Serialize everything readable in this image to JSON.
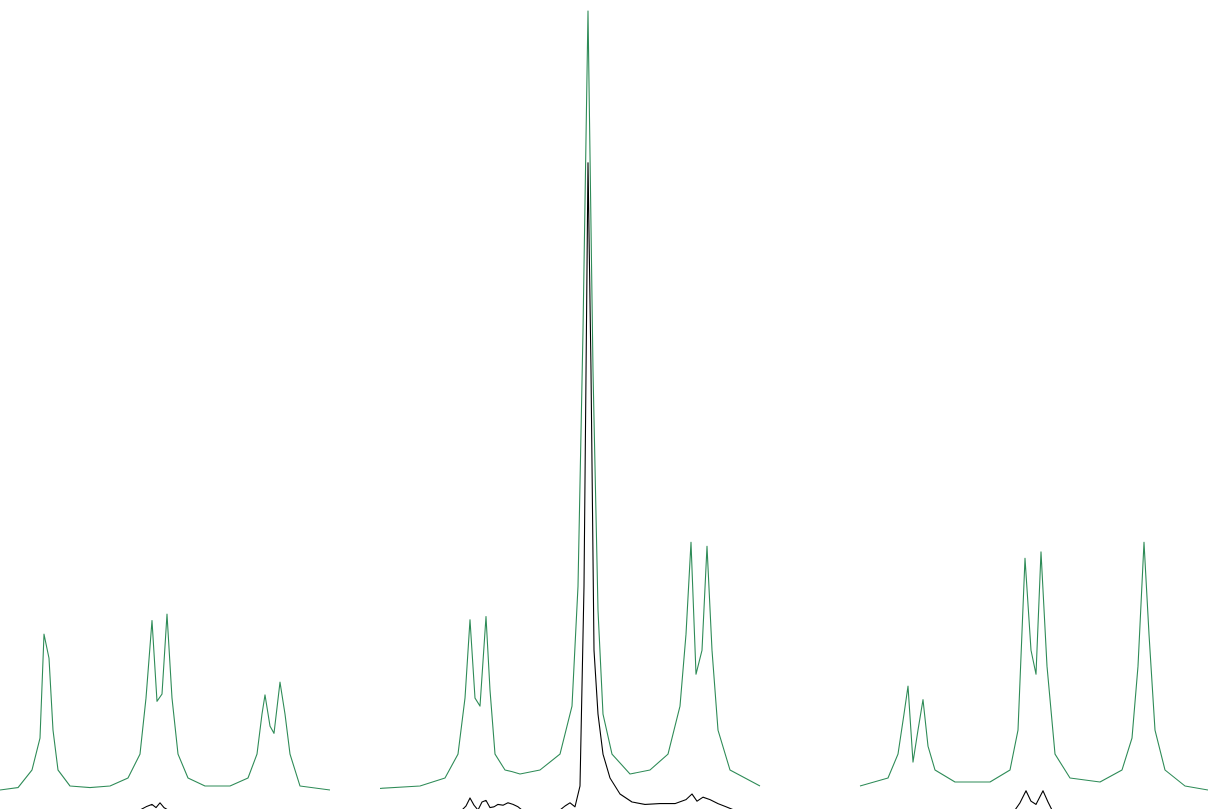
{
  "chart_data": {
    "type": "line",
    "xlim": [
      0,
      1208
    ],
    "ylim": [
      0,
      1.0
    ],
    "grid": false,
    "legend": "none",
    "series": [
      {
        "color": "#2e8b57",
        "points": [
          [
            0,
            0.025
          ],
          [
            18,
            0.028
          ],
          [
            32,
            0.05
          ],
          [
            40,
            0.09
          ],
          [
            44,
            0.22
          ],
          [
            49,
            0.19
          ],
          [
            53,
            0.1
          ],
          [
            58,
            0.05
          ],
          [
            70,
            0.03
          ],
          [
            90,
            0.028
          ],
          [
            110,
            0.03
          ],
          [
            128,
            0.04
          ],
          [
            140,
            0.07
          ],
          [
            146,
            0.14
          ],
          [
            152,
            0.237
          ],
          [
            157,
            0.136
          ],
          [
            162,
            0.145
          ],
          [
            167,
            0.245
          ],
          [
            172,
            0.14
          ],
          [
            178,
            0.07
          ],
          [
            188,
            0.04
          ],
          [
            205,
            0.03
          ],
          [
            230,
            0.03
          ],
          [
            248,
            0.04
          ],
          [
            257,
            0.07
          ],
          [
            262,
            0.12
          ],
          [
            265,
            0.144
          ],
          [
            270,
            0.105
          ],
          [
            274,
            0.096
          ],
          [
            280,
            0.16
          ],
          [
            285,
            0.12
          ],
          [
            290,
            0.07
          ],
          [
            300,
            0.03
          ],
          [
            330,
            0.025
          ],
          [
            380,
            0.027
          ],
          [
            420,
            0.03
          ],
          [
            445,
            0.04
          ],
          [
            458,
            0.07
          ],
          [
            465,
            0.14
          ],
          [
            470,
            0.238
          ],
          [
            475,
            0.14
          ],
          [
            480,
            0.13
          ],
          [
            486,
            0.242
          ],
          [
            490,
            0.15
          ],
          [
            495,
            0.07
          ],
          [
            505,
            0.05
          ],
          [
            512,
            0.048
          ],
          [
            520,
            0.045
          ],
          [
            540,
            0.05
          ],
          [
            560,
            0.07
          ],
          [
            572,
            0.13
          ],
          [
            578,
            0.28
          ],
          [
            583,
            0.6
          ],
          [
            588,
            1.0
          ],
          [
            593,
            0.55
          ],
          [
            598,
            0.25
          ],
          [
            603,
            0.12
          ],
          [
            612,
            0.07
          ],
          [
            630,
            0.045
          ],
          [
            650,
            0.05
          ],
          [
            668,
            0.07
          ],
          [
            680,
            0.13
          ],
          [
            686,
            0.22
          ],
          [
            691,
            0.335
          ],
          [
            696,
            0.17
          ],
          [
            702,
            0.2
          ],
          [
            707,
            0.33
          ],
          [
            712,
            0.2
          ],
          [
            718,
            0.1
          ],
          [
            730,
            0.05
          ],
          [
            760,
            0.03
          ],
          [
            810,
            0.03
          ],
          [
            860,
            0.03
          ],
          [
            888,
            0.04
          ],
          [
            898,
            0.07
          ],
          [
            904,
            0.12
          ],
          [
            908,
            0.155
          ],
          [
            913,
            0.06
          ],
          [
            918,
            0.1
          ],
          [
            923,
            0.138
          ],
          [
            928,
            0.08
          ],
          [
            935,
            0.05
          ],
          [
            955,
            0.035
          ],
          [
            990,
            0.035
          ],
          [
            1010,
            0.05
          ],
          [
            1018,
            0.1
          ],
          [
            1025,
            0.315
          ],
          [
            1031,
            0.2
          ],
          [
            1036,
            0.17
          ],
          [
            1041,
            0.323
          ],
          [
            1047,
            0.18
          ],
          [
            1055,
            0.07
          ],
          [
            1070,
            0.04
          ],
          [
            1100,
            0.035
          ],
          [
            1122,
            0.05
          ],
          [
            1132,
            0.09
          ],
          [
            1138,
            0.18
          ],
          [
            1144,
            0.335
          ],
          [
            1149,
            0.22
          ],
          [
            1155,
            0.1
          ],
          [
            1165,
            0.05
          ],
          [
            1185,
            0.03
          ],
          [
            1208,
            0.025
          ]
        ]
      },
      {
        "color": "#000000",
        "points": [
          [
            140,
            0.0
          ],
          [
            146,
            0.004
          ],
          [
            152,
            0.007
          ],
          [
            156,
            0.003
          ],
          [
            160,
            0.009
          ],
          [
            164,
            0.003
          ],
          [
            168,
            0.0
          ],
          [
            462,
            0.0
          ],
          [
            466,
            0.005
          ],
          [
            470,
            0.015
          ],
          [
            474,
            0.006
          ],
          [
            478,
            0.0
          ],
          [
            482,
            0.01
          ],
          [
            486,
            0.012
          ],
          [
            490,
            0.003
          ],
          [
            494,
            0.004
          ],
          [
            498,
            0.007
          ],
          [
            503,
            0.006
          ],
          [
            508,
            0.009
          ],
          [
            513,
            0.007
          ],
          [
            518,
            0.004
          ],
          [
            522,
            0.0
          ],
          [
            560,
            0.0
          ],
          [
            565,
            0.005
          ],
          [
            570,
            0.009
          ],
          [
            575,
            0.004
          ],
          [
            580,
            0.03
          ],
          [
            584,
            0.28
          ],
          [
            588,
            0.81
          ],
          [
            591,
            0.55
          ],
          [
            594,
            0.2
          ],
          [
            598,
            0.12
          ],
          [
            603,
            0.07
          ],
          [
            610,
            0.04
          ],
          [
            620,
            0.02
          ],
          [
            632,
            0.01
          ],
          [
            645,
            0.007
          ],
          [
            660,
            0.008
          ],
          [
            675,
            0.008
          ],
          [
            686,
            0.013
          ],
          [
            692,
            0.02
          ],
          [
            697,
            0.011
          ],
          [
            703,
            0.016
          ],
          [
            710,
            0.013
          ],
          [
            718,
            0.008
          ],
          [
            726,
            0.004
          ],
          [
            734,
            0.0
          ],
          [
            1015,
            0.0
          ],
          [
            1020,
            0.009
          ],
          [
            1026,
            0.024
          ],
          [
            1031,
            0.011
          ],
          [
            1036,
            0.007
          ],
          [
            1043,
            0.024
          ],
          [
            1048,
            0.01
          ],
          [
            1052,
            0.0
          ]
        ]
      }
    ]
  }
}
